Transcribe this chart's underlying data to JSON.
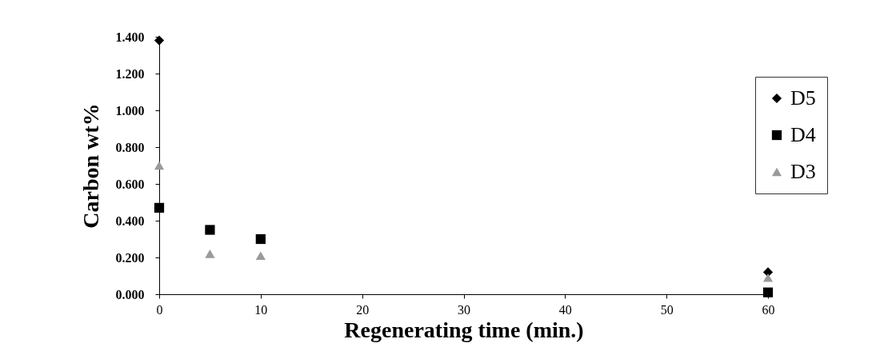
{
  "chart_data": {
    "type": "scatter",
    "xlabel": "Regenerating time (min.)",
    "ylabel": "Carbon wt%",
    "xlim": [
      0,
      60
    ],
    "xticks": [
      0,
      10,
      20,
      30,
      40,
      50,
      60
    ],
    "ylim": [
      0,
      1.4
    ],
    "yticks": [
      {
        "value": 0,
        "label": "0.000"
      },
      {
        "value": 0.2,
        "label": "0.200"
      },
      {
        "value": 0.4,
        "label": "0.400"
      },
      {
        "value": 0.6,
        "label": "0.600"
      },
      {
        "value": 0.8,
        "label": "0.800"
      },
      {
        "value": 1.0,
        "label": "1.000"
      },
      {
        "value": 1.2,
        "label": "1.200"
      },
      {
        "value": 1.4,
        "label": "1.400"
      }
    ],
    "grid": false,
    "legend": "right",
    "series": [
      {
        "name": "D5",
        "color": "#000000",
        "marker": "diamond",
        "x": [
          0,
          60
        ],
        "values": [
          1.38,
          0.12
        ]
      },
      {
        "name": "D4",
        "color": "#000000",
        "marker": "square",
        "x": [
          0,
          5,
          10,
          60
        ],
        "values": [
          0.47,
          0.35,
          0.3,
          0.01
        ]
      },
      {
        "name": "D3",
        "color": "#9a9a9a",
        "marker": "triangle",
        "x": [
          0,
          5,
          10,
          60
        ],
        "values": [
          0.7,
          0.22,
          0.21,
          0.09
        ]
      }
    ]
  }
}
